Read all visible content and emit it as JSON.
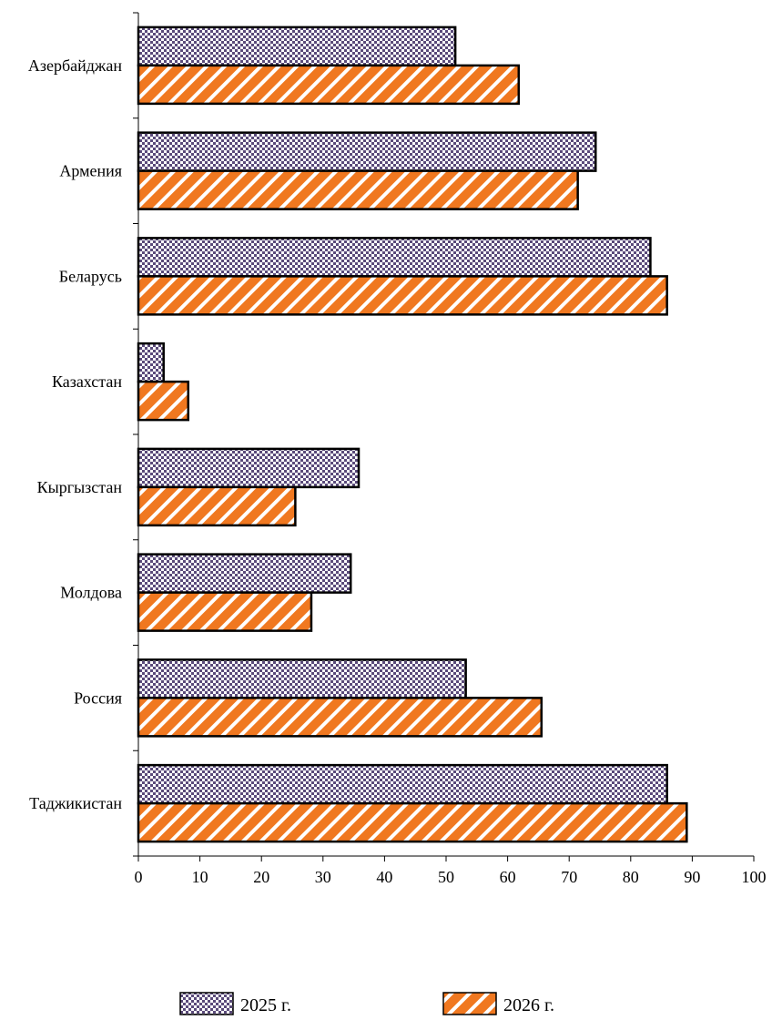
{
  "chart_data": {
    "type": "bar",
    "orientation": "horizontal",
    "categories": [
      "Азербайджан",
      "Армения",
      "Беларусь",
      "Казахстан",
      "Кыргызстан",
      "Молдова",
      "Россия",
      "Таджикистан"
    ],
    "series": [
      {
        "name": "2025 г.",
        "values": [
          51.5,
          74.3,
          83.2,
          4.1,
          35.8,
          34.5,
          53.2,
          85.9
        ],
        "pattern": "checker",
        "color": "#5a4a7a"
      },
      {
        "name": "2026 г.",
        "values": [
          61.8,
          71.4,
          85.9,
          8.1,
          25.5,
          28.1,
          65.5,
          89.1
        ],
        "pattern": "diagonal",
        "color": "#f07820"
      }
    ],
    "xlim": [
      0,
      100
    ],
    "xticks": [
      0,
      10,
      20,
      30,
      40,
      50,
      60,
      70,
      80,
      90,
      100
    ],
    "title": "",
    "xlabel": "",
    "ylabel": "",
    "grid": false,
    "legend_position": "bottom"
  }
}
